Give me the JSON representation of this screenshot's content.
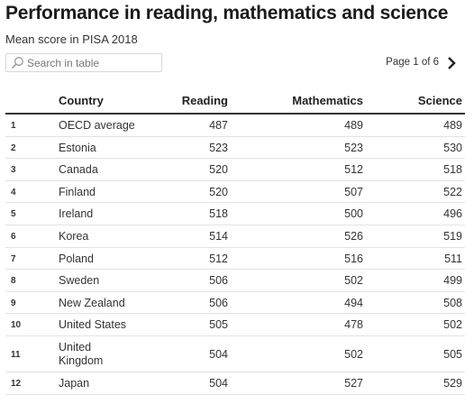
{
  "title": "Performance in reading, mathematics and science",
  "subtitle": "Mean score in PISA 2018",
  "search": {
    "placeholder": "Search in table",
    "value": ""
  },
  "pagination": {
    "label": "Page 1 of 6",
    "current_page": 1,
    "total_pages": 6
  },
  "columns": {
    "country": "Country",
    "reading": "Reading",
    "mathematics": "Mathematics",
    "science": "Science"
  },
  "rows": [
    {
      "rank": "1",
      "country": "OECD average",
      "reading": "487",
      "mathematics": "489",
      "science": "489"
    },
    {
      "rank": "2",
      "country": "Estonia",
      "reading": "523",
      "mathematics": "523",
      "science": "530"
    },
    {
      "rank": "3",
      "country": "Canada",
      "reading": "520",
      "mathematics": "512",
      "science": "518"
    },
    {
      "rank": "4",
      "country": "Finland",
      "reading": "520",
      "mathematics": "507",
      "science": "522"
    },
    {
      "rank": "5",
      "country": "Ireland",
      "reading": "518",
      "mathematics": "500",
      "science": "496"
    },
    {
      "rank": "6",
      "country": "Korea",
      "reading": "514",
      "mathematics": "526",
      "science": "519"
    },
    {
      "rank": "7",
      "country": "Poland",
      "reading": "512",
      "mathematics": "516",
      "science": "511"
    },
    {
      "rank": "8",
      "country": "Sweden",
      "reading": "506",
      "mathematics": "502",
      "science": "499"
    },
    {
      "rank": "9",
      "country": "New Zealand",
      "reading": "506",
      "mathematics": "494",
      "science": "508"
    },
    {
      "rank": "10",
      "country": "United States",
      "reading": "505",
      "mathematics": "478",
      "science": "502"
    },
    {
      "rank": "11",
      "country": "United\nKingdom",
      "reading": "504",
      "mathematics": "502",
      "science": "505"
    },
    {
      "rank": "12",
      "country": "Japan",
      "reading": "504",
      "mathematics": "527",
      "science": "529"
    }
  ],
  "icons": {
    "search": "search-icon",
    "next": "chevron-right-icon"
  }
}
